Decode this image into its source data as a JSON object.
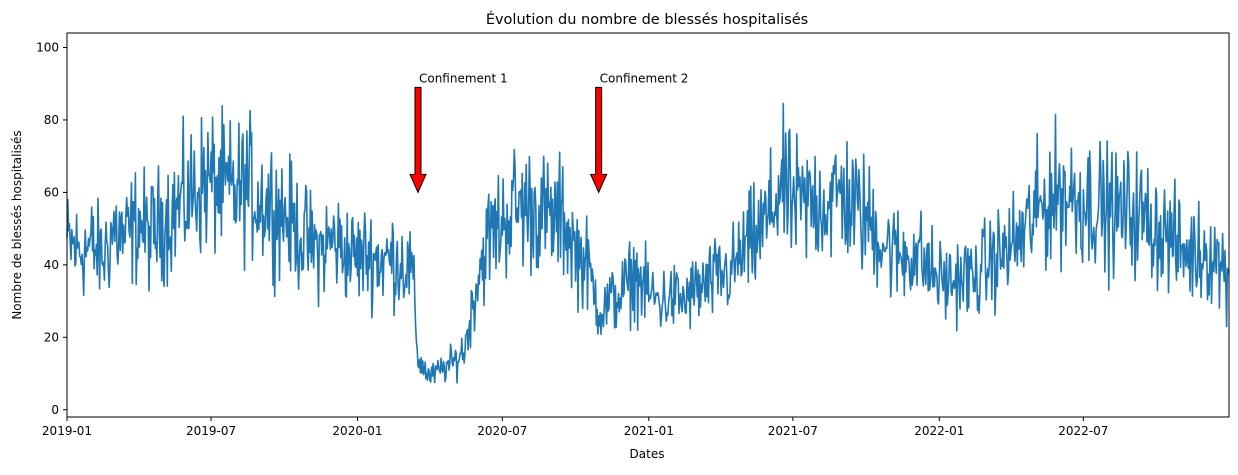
{
  "chart_data": {
    "type": "line",
    "title": "Évolution du nombre de blessés hospitalisés",
    "xlabel": "Dates",
    "ylabel": "Nombre de blessés hospitalisés",
    "xlim": [
      "2019-01-01",
      "2022-12-31"
    ],
    "ylim": [
      -2,
      104
    ],
    "grid": false,
    "x_ticks": [
      {
        "date": "2019-01-01",
        "label": "2019-01"
      },
      {
        "date": "2019-07-01",
        "label": "2019-07"
      },
      {
        "date": "2020-01-01",
        "label": "2020-01"
      },
      {
        "date": "2020-07-01",
        "label": "2020-07"
      },
      {
        "date": "2021-01-01",
        "label": "2021-01"
      },
      {
        "date": "2021-07-01",
        "label": "2021-07"
      },
      {
        "date": "2022-01-01",
        "label": "2022-01"
      },
      {
        "date": "2022-07-01",
        "label": "2022-07"
      }
    ],
    "y_ticks": [
      0,
      20,
      40,
      60,
      80,
      100
    ],
    "series": [
      {
        "color": "#1f77b4",
        "points": [
          {
            "x": "2019-01-01",
            "y": 46
          },
          {
            "x": "2019-01-15",
            "y": 44
          },
          {
            "x": "2019-02-01",
            "y": 45
          },
          {
            "x": "2019-02-15",
            "y": 42
          },
          {
            "x": "2019-03-01",
            "y": 50
          },
          {
            "x": "2019-03-15",
            "y": 47
          },
          {
            "x": "2019-04-01",
            "y": 52
          },
          {
            "x": "2019-04-15",
            "y": 48
          },
          {
            "x": "2019-05-01",
            "y": 52
          },
          {
            "x": "2019-05-15",
            "y": 55
          },
          {
            "x": "2019-06-01",
            "y": 58
          },
          {
            "x": "2019-06-15",
            "y": 62
          },
          {
            "x": "2019-07-01",
            "y": 63
          },
          {
            "x": "2019-07-15",
            "y": 61
          },
          {
            "x": "2019-08-01",
            "y": 60
          },
          {
            "x": "2019-08-15",
            "y": 62
          },
          {
            "x": "2019-09-01",
            "y": 58
          },
          {
            "x": "2019-09-15",
            "y": 57
          },
          {
            "x": "2019-10-01",
            "y": 54
          },
          {
            "x": "2019-10-15",
            "y": 50
          },
          {
            "x": "2019-11-01",
            "y": 46
          },
          {
            "x": "2019-11-15",
            "y": 44
          },
          {
            "x": "2019-12-01",
            "y": 47
          },
          {
            "x": "2019-12-15",
            "y": 44
          },
          {
            "x": "2020-01-01",
            "y": 42
          },
          {
            "x": "2020-01-15",
            "y": 43
          },
          {
            "x": "2020-02-01",
            "y": 41
          },
          {
            "x": "2020-02-15",
            "y": 42
          },
          {
            "x": "2020-03-01",
            "y": 40
          },
          {
            "x": "2020-03-10",
            "y": 38
          },
          {
            "x": "2020-03-17",
            "y": 14
          },
          {
            "x": "2020-04-01",
            "y": 9
          },
          {
            "x": "2020-04-15",
            "y": 11
          },
          {
            "x": "2020-05-01",
            "y": 13
          },
          {
            "x": "2020-05-15",
            "y": 17
          },
          {
            "x": "2020-06-01",
            "y": 38
          },
          {
            "x": "2020-06-15",
            "y": 48
          },
          {
            "x": "2020-07-01",
            "y": 52
          },
          {
            "x": "2020-07-15",
            "y": 56
          },
          {
            "x": "2020-08-01",
            "y": 56
          },
          {
            "x": "2020-08-15",
            "y": 55
          },
          {
            "x": "2020-09-01",
            "y": 52
          },
          {
            "x": "2020-09-15",
            "y": 53
          },
          {
            "x": "2020-10-01",
            "y": 44
          },
          {
            "x": "2020-10-15",
            "y": 40
          },
          {
            "x": "2020-11-01",
            "y": 27
          },
          {
            "x": "2020-11-15",
            "y": 30
          },
          {
            "x": "2020-12-01",
            "y": 33
          },
          {
            "x": "2020-12-15",
            "y": 37
          },
          {
            "x": "2021-01-01",
            "y": 32
          },
          {
            "x": "2021-01-15",
            "y": 30
          },
          {
            "x": "2021-02-01",
            "y": 31
          },
          {
            "x": "2021-02-15",
            "y": 30
          },
          {
            "x": "2021-03-01",
            "y": 33
          },
          {
            "x": "2021-03-15",
            "y": 34
          },
          {
            "x": "2021-04-01",
            "y": 37
          },
          {
            "x": "2021-04-15",
            "y": 38
          },
          {
            "x": "2021-05-01",
            "y": 44
          },
          {
            "x": "2021-05-15",
            "y": 47
          },
          {
            "x": "2021-06-01",
            "y": 53
          },
          {
            "x": "2021-06-15",
            "y": 62
          },
          {
            "x": "2021-07-01",
            "y": 57
          },
          {
            "x": "2021-07-15",
            "y": 56
          },
          {
            "x": "2021-08-01",
            "y": 58
          },
          {
            "x": "2021-08-15",
            "y": 57
          },
          {
            "x": "2021-09-01",
            "y": 60
          },
          {
            "x": "2021-09-15",
            "y": 56
          },
          {
            "x": "2021-10-01",
            "y": 53
          },
          {
            "x": "2021-10-15",
            "y": 49
          },
          {
            "x": "2021-11-01",
            "y": 44
          },
          {
            "x": "2021-11-15",
            "y": 42
          },
          {
            "x": "2021-12-01",
            "y": 44
          },
          {
            "x": "2021-12-15",
            "y": 40
          },
          {
            "x": "2022-01-01",
            "y": 36
          },
          {
            "x": "2022-01-15",
            "y": 35
          },
          {
            "x": "2022-02-01",
            "y": 37
          },
          {
            "x": "2022-02-15",
            "y": 36
          },
          {
            "x": "2022-03-01",
            "y": 40
          },
          {
            "x": "2022-03-15",
            "y": 42
          },
          {
            "x": "2022-04-01",
            "y": 45
          },
          {
            "x": "2022-04-15",
            "y": 48
          },
          {
            "x": "2022-05-01",
            "y": 54
          },
          {
            "x": "2022-05-15",
            "y": 57
          },
          {
            "x": "2022-06-01",
            "y": 60
          },
          {
            "x": "2022-06-15",
            "y": 59
          },
          {
            "x": "2022-07-01",
            "y": 58
          },
          {
            "x": "2022-07-15",
            "y": 57
          },
          {
            "x": "2022-08-01",
            "y": 55
          },
          {
            "x": "2022-08-15",
            "y": 54
          },
          {
            "x": "2022-09-01",
            "y": 55
          },
          {
            "x": "2022-09-15",
            "y": 53
          },
          {
            "x": "2022-10-01",
            "y": 50
          },
          {
            "x": "2022-10-15",
            "y": 48
          },
          {
            "x": "2022-11-01",
            "y": 44
          },
          {
            "x": "2022-11-15",
            "y": 43
          },
          {
            "x": "2022-12-01",
            "y": 44
          },
          {
            "x": "2022-12-15",
            "y": 42
          },
          {
            "x": "2022-12-31",
            "y": 37
          }
        ]
      }
    ],
    "annotations": [
      {
        "text": "Confinement 1",
        "x": "2020-03-17",
        "y": 60,
        "arrow_color": "#ff0000",
        "arrow_direction": "down"
      },
      {
        "text": "Confinement 2",
        "x": "2020-10-30",
        "y": 60,
        "arrow_color": "#ff0000",
        "arrow_direction": "down"
      }
    ]
  }
}
